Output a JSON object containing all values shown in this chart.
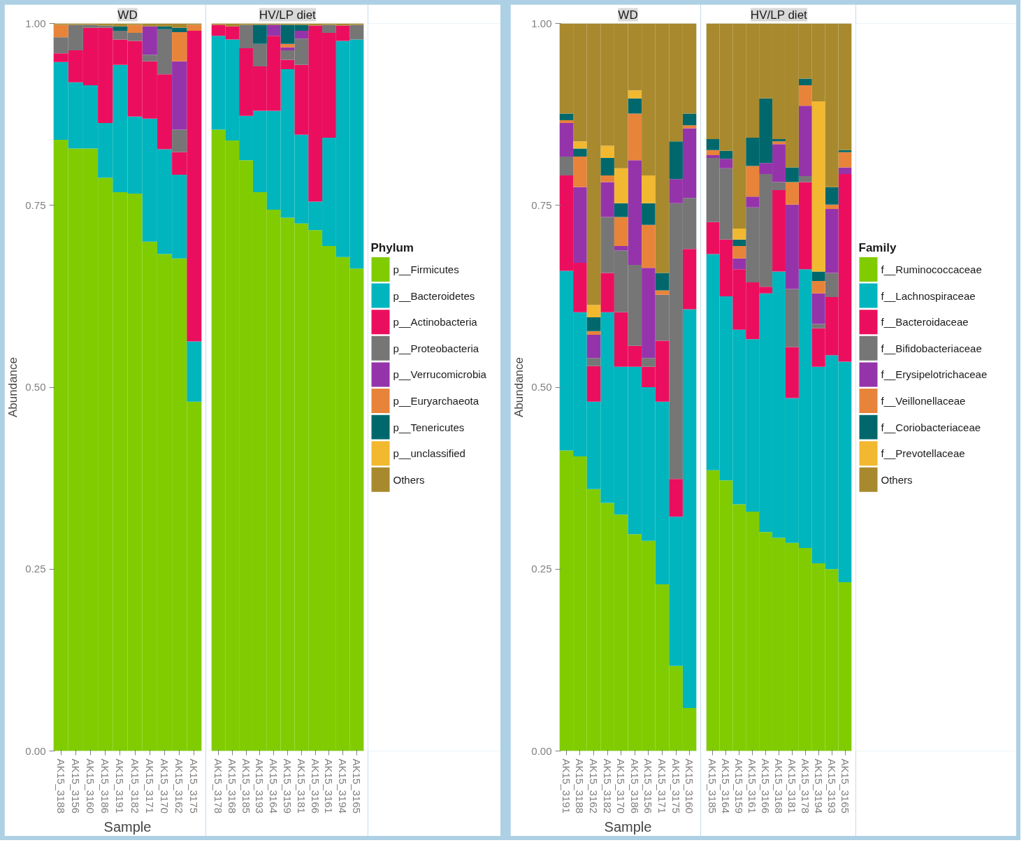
{
  "chart_data": [
    {
      "type": "bar",
      "stacked": true,
      "title": "WD",
      "ylabel": "Abundance",
      "xlabel": "Sample",
      "categories": [
        "AK15_3188",
        "AK15_3156",
        "AK15_3160",
        "AK15_3186",
        "AK15_3191",
        "AK15_3182",
        "AK15_3171",
        "AK15_3170",
        "AK15_3162",
        "AK15_3175"
      ],
      "ylim": [
        0,
        1
      ],
      "yticks": [
        {
          "value": 0,
          "label": "0.00"
        },
        {
          "value": 0.25,
          "label": "0.25"
        },
        {
          "value": 0.5,
          "label": "0.50"
        },
        {
          "value": 0.75,
          "label": "0.75"
        },
        {
          "value": 1,
          "label": "1.00"
        }
      ],
      "series": [
        {
          "color": "#80cc00",
          "values": [
            0.84,
            0.828,
            0.828,
            0.788,
            0.768,
            0.766,
            0.7,
            0.683,
            0.677,
            0.48
          ]
        },
        {
          "color": "#00b5be",
          "values": [
            0.107,
            0.091,
            0.087,
            0.075,
            0.175,
            0.106,
            0.169,
            0.144,
            0.115,
            0.083
          ]
        },
        {
          "color": "#ec0e5e",
          "values": [
            0.012,
            0.044,
            0.079,
            0.131,
            0.035,
            0.104,
            0.079,
            0.103,
            0.031,
            0.427
          ]
        },
        {
          "color": "#767676",
          "values": [
            0.022,
            0.035,
            0.004,
            0.003,
            0.012,
            0.011,
            0.009,
            0.062,
            0.031,
            0
          ]
        },
        {
          "color": "#9534aa",
          "values": [
            0,
            0,
            0,
            0,
            0,
            0,
            0.039,
            0,
            0.094,
            0
          ]
        },
        {
          "color": "#e8833a",
          "values": [
            0.017,
            0,
            0,
            0,
            0,
            0.011,
            0,
            0,
            0.04,
            0.008
          ]
        },
        {
          "color": "#00686c",
          "values": [
            0,
            0,
            0,
            0,
            0.006,
            0,
            0,
            0.004,
            0.006,
            0
          ]
        },
        {
          "color": "#f2b830",
          "values": [
            0,
            0,
            0,
            0,
            0,
            0,
            0,
            0,
            0,
            0
          ]
        },
        {
          "color": "#a8892e",
          "values": [
            0.002,
            0.002,
            0.002,
            0.003,
            0.004,
            0.002,
            0.004,
            0.004,
            0.006,
            0.002
          ]
        }
      ]
    },
    {
      "type": "bar",
      "stacked": true,
      "title": "HV/LP diet",
      "legend": "right",
      "legend_title": "Phylum",
      "tick_labels": "x",
      "categories": [
        "AK15_3178",
        "AK15_3168",
        "AK15_3185",
        "AK15_3193",
        "AK15_3164",
        "AK15_3159",
        "AK15_3181",
        "AK15_3166",
        "AK15_3161",
        "AK15_3194",
        "AK15_3165"
      ],
      "ylim": [
        0,
        1
      ],
      "series": [
        {
          "name": "p__Firmicutes",
          "color": "#80cc00",
          "values": [
            0.854,
            0.839,
            0.812,
            0.768,
            0.744,
            0.733,
            0.725,
            0.716,
            0.694,
            0.679,
            0.663
          ]
        },
        {
          "name": "p__Bacteroidetes",
          "color": "#00b5be",
          "values": [
            0.129,
            0.139,
            0.061,
            0.112,
            0.136,
            0.204,
            0.122,
            0.039,
            0.149,
            0.297,
            0.315
          ]
        },
        {
          "name": "p__Actinobacteria",
          "color": "#ec0e5e",
          "values": [
            0.015,
            0.018,
            0.093,
            0.061,
            0.103,
            0.013,
            0.096,
            0.242,
            0.144,
            0.021,
            0
          ]
        },
        {
          "name": "p__Proteobacteria",
          "color": "#767676",
          "values": [
            0,
            0,
            0.032,
            0.031,
            0,
            0.013,
            0.036,
            0,
            0.011,
            0,
            0.02
          ]
        },
        {
          "name": "p__Verrucomicrobia",
          "color": "#9534aa",
          "values": [
            0,
            0,
            0,
            0,
            0.015,
            0.004,
            0.011,
            0,
            0,
            0,
            0
          ]
        },
        {
          "name": "p__Euryarchaeota",
          "color": "#e8833a",
          "values": [
            0,
            0,
            0,
            0,
            0,
            0.005,
            0,
            0,
            0,
            0,
            0
          ]
        },
        {
          "name": "p__Tenericutes",
          "color": "#00686c",
          "values": [
            0,
            0,
            0,
            0.026,
            0,
            0.026,
            0.008,
            0,
            0,
            0,
            0
          ]
        },
        {
          "name": "p__unclassified",
          "color": "#f2b830",
          "values": [
            0,
            0,
            0,
            0,
            0,
            0,
            0,
            0,
            0,
            0,
            0
          ]
        },
        {
          "name": "Others",
          "color": "#a8892e",
          "values": [
            0.002,
            0.004,
            0.002,
            0.002,
            0.002,
            0.002,
            0.002,
            0.003,
            0.002,
            0.003,
            0.002
          ]
        }
      ]
    },
    {
      "type": "bar",
      "stacked": true,
      "title": "WD",
      "ylabel": "Abundance",
      "xlabel": "Sample",
      "categories": [
        "AK15_3191",
        "AK15_3188",
        "AK15_3162",
        "AK15_3182",
        "AK15_3170",
        "AK15_3186",
        "AK15_3156",
        "AK15_3171",
        "AK15_3175",
        "AK15_3160"
      ],
      "ylim": [
        0,
        1
      ],
      "yticks": [
        {
          "value": 0,
          "label": "0.00"
        },
        {
          "value": 0.25,
          "label": "0.25"
        },
        {
          "value": 0.5,
          "label": "0.50"
        },
        {
          "value": 0.75,
          "label": "0.75"
        },
        {
          "value": 1,
          "label": "1.00"
        }
      ],
      "series": [
        {
          "color": "#80cc00",
          "values": [
            0.413,
            0.405,
            0.36,
            0.341,
            0.325,
            0.298,
            0.289,
            0.229,
            0.117,
            0.059
          ]
        },
        {
          "color": "#00b5be",
          "values": [
            0.247,
            0.198,
            0.12,
            0.262,
            0.203,
            0.23,
            0.211,
            0.251,
            0.205,
            0.548
          ]
        },
        {
          "color": "#ec0e5e",
          "values": [
            0.131,
            0.068,
            0.049,
            0.054,
            0.075,
            0.029,
            0.028,
            0.084,
            0.052,
            0.083
          ]
        },
        {
          "color": "#767676",
          "values": [
            0.026,
            0,
            0.011,
            0.077,
            0.085,
            0.111,
            0.012,
            0.063,
            0.379,
            0.07
          ]
        },
        {
          "color": "#9534aa",
          "values": [
            0.046,
            0.104,
            0.032,
            0.048,
            0.006,
            0.144,
            0.124,
            0,
            0.033,
            0.096
          ]
        },
        {
          "color": "#e8833a",
          "values": [
            0.004,
            0.042,
            0.005,
            0.009,
            0.04,
            0.064,
            0.059,
            0.006,
            0,
            0.004
          ]
        },
        {
          "color": "#00686c",
          "values": [
            0.009,
            0.011,
            0.019,
            0.024,
            0.019,
            0.021,
            0.03,
            0.024,
            0.052,
            0.016
          ]
        },
        {
          "color": "#f2b830",
          "values": [
            0,
            0.01,
            0.017,
            0.017,
            0.048,
            0.011,
            0.038,
            0,
            0,
            0
          ]
        },
        {
          "color": "#a8892e",
          "values": [
            0.124,
            0.162,
            0.387,
            0.168,
            0.199,
            0.092,
            0.209,
            0.343,
            0.162,
            0.124
          ]
        }
      ]
    },
    {
      "type": "bar",
      "stacked": true,
      "title": "HV/LP diet",
      "legend": "right",
      "legend_title": "Family",
      "tick_labels": "x",
      "categories": [
        "AK15_3185",
        "AK15_3164",
        "AK15_3159",
        "AK15_3161",
        "AK15_3166",
        "AK15_3168",
        "AK15_3181",
        "AK15_3178",
        "AK15_3194",
        "AK15_3193",
        "AK15_3165"
      ],
      "ylim": [
        0,
        1
      ],
      "series": [
        {
          "name": "f__Ruminococcaceae",
          "color": "#80cc00",
          "values": [
            0.386,
            0.372,
            0.339,
            0.329,
            0.301,
            0.293,
            0.286,
            0.279,
            0.258,
            0.25,
            0.232
          ]
        },
        {
          "name": "f__Lachnospiraceae",
          "color": "#00b5be",
          "values": [
            0.297,
            0.253,
            0.24,
            0.237,
            0.328,
            0.366,
            0.199,
            0.383,
            0.27,
            0.294,
            0.303
          ]
        },
        {
          "name": "f__Bacteroidaceae",
          "color": "#ec0e5e",
          "values": [
            0.044,
            0.078,
            0.083,
            0.078,
            0.009,
            0.112,
            0.07,
            0.12,
            0.053,
            0.08,
            0.258
          ]
        },
        {
          "name": "f__Bifidobacteriaceae",
          "color": "#767676",
          "values": [
            0.088,
            0.098,
            0,
            0.103,
            0.155,
            0.011,
            0.08,
            0.008,
            0.006,
            0.033,
            0
          ]
        },
        {
          "name": "f__Erysipelotrichaceae",
          "color": "#9534aa",
          "values": [
            0.004,
            0.013,
            0.015,
            0.015,
            0.015,
            0.052,
            0.116,
            0.097,
            0.042,
            0.088,
            0.009
          ]
        },
        {
          "name": "f__Veillonellaceae",
          "color": "#e8833a",
          "values": [
            0.007,
            0,
            0.017,
            0.042,
            0,
            0.004,
            0.031,
            0.028,
            0.017,
            0.006,
            0.021
          ]
        },
        {
          "name": "f__Coriobacteriaceae",
          "color": "#00686c",
          "values": [
            0.015,
            0.011,
            0.009,
            0.039,
            0.089,
            0.003,
            0.02,
            0.009,
            0.013,
            0.024,
            0.003
          ]
        },
        {
          "name": "f__Prevotellaceae",
          "color": "#f2b830",
          "values": [
            0,
            0,
            0.015,
            0,
            0,
            0,
            0,
            0,
            0.234,
            0,
            0
          ]
        },
        {
          "name": "Others",
          "color": "#a8892e",
          "values": [
            0.159,
            0.175,
            0.282,
            0.157,
            0.103,
            0.159,
            0.198,
            0.076,
            0.107,
            0.225,
            0.174
          ]
        }
      ]
    }
  ]
}
